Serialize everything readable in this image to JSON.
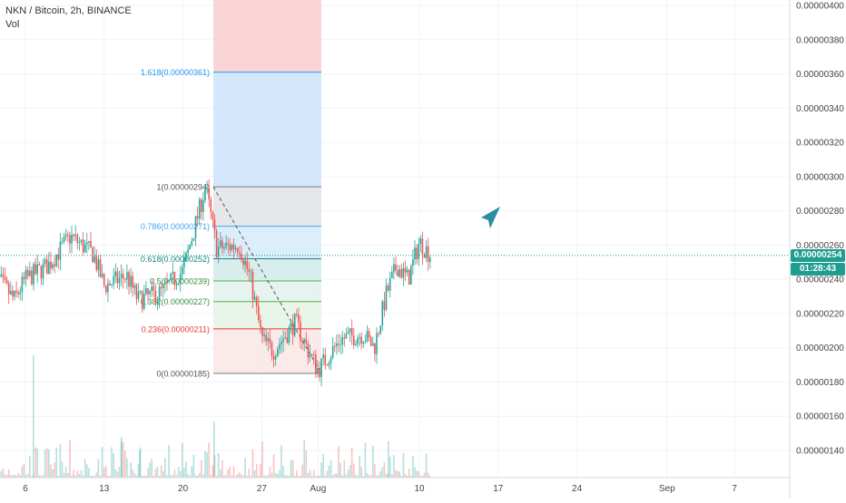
{
  "header": {
    "title": "NKN / Bitcoin, 2h, BINANCE",
    "volume_label": "Vol"
  },
  "colors": {
    "up": "#26a69a",
    "down": "#ef5350",
    "grid": "#f0f3fa",
    "accent": "#1e9e8f",
    "arrow": "#2a8ea5"
  },
  "chart_data": {
    "type": "candlestick",
    "title": "NKN / Bitcoin, 2h, BINANCE",
    "ylim": [
      1.3e-06,
      4.05e-06
    ],
    "y_ticks": [
      "0.00000400",
      "0.00000380",
      "0.00000360",
      "0.00000340",
      "0.00000320",
      "0.00000300",
      "0.00000280",
      "0.00000260",
      "0.00000240",
      "0.00000220",
      "0.00000200",
      "0.00000180",
      "0.00000160",
      "0.00000140"
    ],
    "x_ticks": [
      "6",
      "13",
      "20",
      "27",
      "Aug",
      "10",
      "17",
      "24",
      "Sep",
      "7"
    ],
    "last_price": "0.00000254",
    "countdown": "01:28:43",
    "fibonacci": {
      "levels": [
        {
          "ratio": 1.618,
          "label": "1.618(0.00000361)",
          "price": 3.61e-06
        },
        {
          "ratio": 1,
          "label": "1(0.00000294)",
          "price": 2.94e-06
        },
        {
          "ratio": 0.786,
          "label": "0.786(0.00000271)",
          "price": 2.71e-06
        },
        {
          "ratio": 0.618,
          "label": "0.618(0.00000252)",
          "price": 2.52e-06
        },
        {
          "ratio": 0.5,
          "label": "0.5(0.00000239)",
          "price": 2.39e-06
        },
        {
          "ratio": 0.382,
          "label": "0.382(0.00000227)",
          "price": 2.27e-06
        },
        {
          "ratio": 0.236,
          "label": "0.236(0.00000211)",
          "price": 2.11e-06
        },
        {
          "ratio": 0,
          "label": "0(0.00000185)",
          "price": 1.85e-06
        }
      ]
    },
    "price_path": [
      {
        "date": "Jul 3",
        "price": 2.45e-06
      },
      {
        "date": "Jul 5",
        "price": 2.28e-06
      },
      {
        "date": "Jul 6",
        "price": 2.4e-06
      },
      {
        "date": "Jul 8",
        "price": 2.48e-06
      },
      {
        "date": "Jul 10",
        "price": 2.65e-06
      },
      {
        "date": "Jul 12",
        "price": 2.55e-06
      },
      {
        "date": "Jul 13",
        "price": 2.36e-06
      },
      {
        "date": "Jul 15",
        "price": 2.42e-06
      },
      {
        "date": "Jul 16",
        "price": 2.28e-06
      },
      {
        "date": "Jul 18",
        "price": 2.32e-06
      },
      {
        "date": "Jul 20",
        "price": 2.45e-06
      },
      {
        "date": "Jul 22",
        "price": 2.94e-06
      },
      {
        "date": "Jul 23",
        "price": 2.58e-06
      },
      {
        "date": "Jul 25",
        "price": 2.6e-06
      },
      {
        "date": "Jul 26",
        "price": 2.4e-06
      },
      {
        "date": "Jul 27",
        "price": 2.05e-06
      },
      {
        "date": "Jul 28",
        "price": 1.98e-06
      },
      {
        "date": "Jul 30",
        "price": 2.15e-06
      },
      {
        "date": "Jul 31",
        "price": 2e-06
      },
      {
        "date": "Aug 1",
        "price": 1.87e-06
      },
      {
        "date": "Aug 3",
        "price": 2.05e-06
      },
      {
        "date": "Aug 5",
        "price": 2.08e-06
      },
      {
        "date": "Aug 6",
        "price": 2e-06
      },
      {
        "date": "Aug 7",
        "price": 2.3e-06
      },
      {
        "date": "Aug 8",
        "price": 2.48e-06
      },
      {
        "date": "Aug 9",
        "price": 2.4e-06
      },
      {
        "date": "Aug 10",
        "price": 2.62e-06
      },
      {
        "date": "Aug 11",
        "price": 2.54e-06
      }
    ]
  }
}
